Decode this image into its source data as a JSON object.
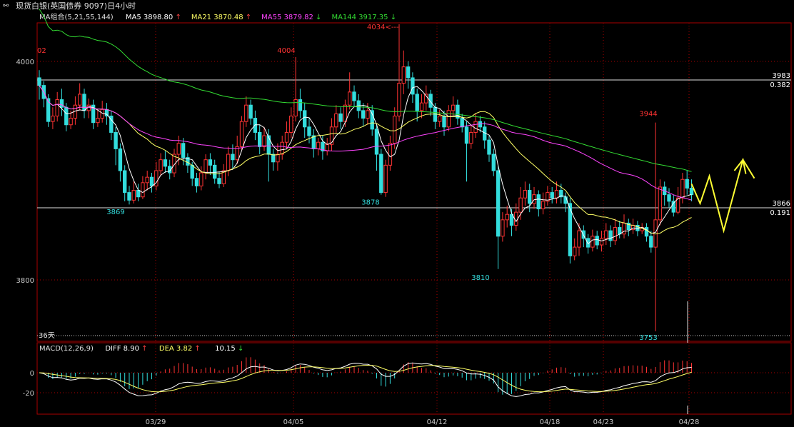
{
  "window": {
    "title": "现货白银(英国债券 9097)日4小时",
    "icon": "link-icon"
  },
  "ma_legend": {
    "group_label": "MA组合(5,21,55,144)",
    "items": [
      {
        "label": "MA5 3898.80",
        "arrow": "↑",
        "color": "#ffffff"
      },
      {
        "label": "MA21 3870.48",
        "arrow": "↑",
        "color": "#ffff66"
      },
      {
        "label": "MA55 3879.82",
        "arrow": "↓",
        "color": "#ff44ff"
      },
      {
        "label": "MA144 3917.35",
        "arrow": "↓",
        "color": "#33dd33"
      }
    ]
  },
  "macd_legend": {
    "label": "MACD(12,26,9)",
    "diff": "DIFF 8.90",
    "diff_arrow": "↑",
    "dea": "DEA 3.82",
    "dea_arrow": "↑",
    "macd": "10.15",
    "macd_arrow": "↓"
  },
  "colors": {
    "up": "#ff3333",
    "down": "#33dddd",
    "ma5": "#ffffff",
    "ma21": "#ffff66",
    "ma55": "#ff44ff",
    "ma144": "#33dd33",
    "grid": "#aa0000",
    "forecast": "#ffff33"
  },
  "chart_data": [
    {
      "type": "candlestick",
      "title": "现货白银(英国债券 9097)日4小时",
      "ylim": [
        3753,
        4034
      ],
      "yticks": [
        "4000",
        "3800"
      ],
      "xticks": [
        "03/29",
        "04/05",
        "04/12",
        "04/18",
        "04/23",
        "04/28"
      ],
      "price_annotations": [
        "02",
        "4004",
        "4034<---",
        "3869",
        "3878",
        "3810",
        "3944",
        "3753"
      ],
      "horizontal_levels": [
        {
          "price": 3983,
          "label": "3983",
          "ratio": "0.382"
        },
        {
          "price": 3866,
          "label": "3866",
          "ratio": "0.191"
        }
      ],
      "bottom_label": "36天",
      "series": [
        {
          "name": "MA5",
          "last": 3898.8
        },
        {
          "name": "MA21",
          "last": 3870.48
        },
        {
          "name": "MA55",
          "last": 3879.82
        },
        {
          "name": "MA144",
          "last": 3917.35
        }
      ],
      "candles": [
        [
          3985,
          3978,
          3992,
          3965
        ],
        [
          3978,
          3966,
          3982,
          3958
        ],
        [
          3966,
          3945,
          3970,
          3940
        ],
        [
          3945,
          3950,
          3958,
          3938
        ],
        [
          3950,
          3965,
          3972,
          3945
        ],
        [
          3965,
          3958,
          3975,
          3950
        ],
        [
          3958,
          3942,
          3962,
          3936
        ],
        [
          3942,
          3948,
          3955,
          3938
        ],
        [
          3948,
          3960,
          3968,
          3942
        ],
        [
          3960,
          3970,
          3980,
          3955
        ],
        [
          3970,
          3955,
          3975,
          3948
        ],
        [
          3955,
          3960,
          3966,
          3948
        ],
        [
          3960,
          3944,
          3965,
          3938
        ],
        [
          3944,
          3948,
          3956,
          3940
        ],
        [
          3948,
          3956,
          3964,
          3944
        ],
        [
          3956,
          3950,
          3962,
          3942
        ],
        [
          3950,
          3935,
          3955,
          3928
        ],
        [
          3935,
          3920,
          3940,
          3905
        ],
        [
          3920,
          3900,
          3925,
          3890
        ],
        [
          3900,
          3880,
          3905,
          3872
        ],
        [
          3880,
          3873,
          3886,
          3869
        ],
        [
          3873,
          3882,
          3890,
          3870
        ],
        [
          3882,
          3876,
          3888,
          3872
        ],
        [
          3876,
          3889,
          3895,
          3874
        ],
        [
          3889,
          3894,
          3900,
          3882
        ],
        [
          3894,
          3886,
          3898,
          3880
        ],
        [
          3886,
          3900,
          3908,
          3882
        ],
        [
          3900,
          3910,
          3916,
          3895
        ],
        [
          3910,
          3904,
          3918,
          3898
        ],
        [
          3904,
          3898,
          3910,
          3892
        ],
        [
          3898,
          3915,
          3920,
          3894
        ],
        [
          3915,
          3925,
          3932,
          3905
        ],
        [
          3925,
          3912,
          3930,
          3905
        ],
        [
          3912,
          3905,
          3916,
          3898
        ],
        [
          3905,
          3893,
          3908,
          3886
        ],
        [
          3893,
          3886,
          3898,
          3880
        ],
        [
          3886,
          3898,
          3904,
          3882
        ],
        [
          3898,
          3910,
          3915,
          3892
        ],
        [
          3910,
          3905,
          3916,
          3896
        ],
        [
          3905,
          3893,
          3910,
          3888
        ],
        [
          3893,
          3888,
          3899,
          3884
        ],
        [
          3888,
          3900,
          3906,
          3885
        ],
        [
          3900,
          3915,
          3922,
          3895
        ],
        [
          3915,
          3910,
          3924,
          3902
        ],
        [
          3910,
          3922,
          3932,
          3906
        ],
        [
          3922,
          3945,
          3950,
          3918
        ],
        [
          3945,
          3960,
          3968,
          3940
        ],
        [
          3960,
          3948,
          3965,
          3942
        ],
        [
          3948,
          3935,
          3955,
          3928
        ],
        [
          3935,
          3922,
          3942,
          3915
        ],
        [
          3922,
          3932,
          3940,
          3918
        ],
        [
          3932,
          3915,
          3938,
          3890
        ],
        [
          3915,
          3908,
          3920,
          3900
        ],
        [
          3908,
          3915,
          3925,
          3900
        ],
        [
          3915,
          3926,
          3932,
          3910
        ],
        [
          3926,
          3935,
          3945,
          3920
        ],
        [
          3935,
          3950,
          3958,
          3930
        ],
        [
          3950,
          3965,
          4004,
          3945
        ],
        [
          3965,
          3955,
          3975,
          3948
        ],
        [
          3955,
          3940,
          3962,
          3930
        ],
        [
          3940,
          3932,
          3948,
          3925
        ],
        [
          3932,
          3920,
          3938,
          3912
        ],
        [
          3920,
          3926,
          3930,
          3914
        ],
        [
          3926,
          3918,
          3932,
          3910
        ],
        [
          3918,
          3924,
          3930,
          3914
        ],
        [
          3924,
          3940,
          3948,
          3918
        ],
        [
          3940,
          3952,
          3960,
          3934
        ],
        [
          3952,
          3945,
          3958,
          3938
        ],
        [
          3945,
          3960,
          3965,
          3940
        ],
        [
          3960,
          3972,
          3990,
          3956
        ],
        [
          3972,
          3964,
          3978,
          3958
        ],
        [
          3964,
          3955,
          3970,
          3948
        ],
        [
          3955,
          3948,
          3962,
          3940
        ],
        [
          3948,
          3955,
          3962,
          3942
        ],
        [
          3955,
          3938,
          3960,
          3932
        ],
        [
          3938,
          3915,
          3942,
          3900
        ],
        [
          3915,
          3880,
          3920,
          3878
        ],
        [
          3880,
          3905,
          3910,
          3876
        ],
        [
          3905,
          3925,
          3932,
          3900
        ],
        [
          3925,
          3950,
          3958,
          3920
        ],
        [
          3950,
          3980,
          4034,
          3945
        ],
        [
          3980,
          3995,
          4010,
          3970
        ],
        [
          3995,
          3985,
          4000,
          3975
        ],
        [
          3985,
          3970,
          3990,
          3962
        ],
        [
          3970,
          3955,
          3975,
          3945
        ],
        [
          3955,
          3962,
          3970,
          3948
        ],
        [
          3962,
          3970,
          3978,
          3955
        ],
        [
          3970,
          3958,
          3974,
          3950
        ],
        [
          3958,
          3945,
          3962,
          3938
        ],
        [
          3945,
          3950,
          3956,
          3940
        ],
        [
          3950,
          3940,
          3955,
          3932
        ],
        [
          3940,
          3955,
          3960,
          3936
        ],
        [
          3955,
          3960,
          3968,
          3950
        ],
        [
          3960,
          3948,
          3965,
          3942
        ],
        [
          3948,
          3940,
          3952,
          3935
        ],
        [
          3940,
          3925,
          3945,
          3890
        ],
        [
          3925,
          3935,
          3942,
          3920
        ],
        [
          3935,
          3945,
          3952,
          3930
        ],
        [
          3945,
          3940,
          3950,
          3935
        ],
        [
          3940,
          3928,
          3945,
          3920
        ],
        [
          3928,
          3915,
          3932,
          3908
        ],
        [
          3915,
          3900,
          3920,
          3895
        ],
        [
          3900,
          3840,
          3905,
          3810
        ],
        [
          3840,
          3855,
          3862,
          3835
        ],
        [
          3855,
          3860,
          3868,
          3848
        ],
        [
          3860,
          3850,
          3865,
          3840
        ],
        [
          3850,
          3862,
          3870,
          3845
        ],
        [
          3862,
          3875,
          3885,
          3855
        ],
        [
          3875,
          3882,
          3890,
          3868
        ],
        [
          3882,
          3870,
          3888,
          3862
        ],
        [
          3870,
          3878,
          3885,
          3865
        ],
        [
          3878,
          3865,
          3882,
          3858
        ],
        [
          3865,
          3872,
          3880,
          3860
        ],
        [
          3872,
          3880,
          3886,
          3868
        ],
        [
          3880,
          3875,
          3885,
          3870
        ],
        [
          3875,
          3882,
          3890,
          3870
        ],
        [
          3882,
          3876,
          3888,
          3870
        ],
        [
          3876,
          3870,
          3880,
          3862
        ],
        [
          3870,
          3822,
          3875,
          3815
        ],
        [
          3822,
          3830,
          3838,
          3818
        ],
        [
          3830,
          3845,
          3852,
          3822
        ],
        [
          3845,
          3838,
          3850,
          3830
        ],
        [
          3838,
          3830,
          3842,
          3824
        ],
        [
          3830,
          3840,
          3846,
          3826
        ],
        [
          3840,
          3832,
          3845,
          3828
        ],
        [
          3832,
          3838,
          3845,
          3826
        ],
        [
          3838,
          3845,
          3852,
          3832
        ],
        [
          3845,
          3836,
          3850,
          3830
        ],
        [
          3836,
          3848,
          3856,
          3832
        ],
        [
          3848,
          3842,
          3854,
          3838
        ],
        [
          3842,
          3852,
          3860,
          3838
        ],
        [
          3852,
          3846,
          3856,
          3840
        ],
        [
          3846,
          3850,
          3856,
          3842
        ],
        [
          3850,
          3845,
          3854,
          3840
        ],
        [
          3845,
          3848,
          3852,
          3842
        ],
        [
          3848,
          3840,
          3852,
          3835
        ],
        [
          3840,
          3830,
          3845,
          3825
        ],
        [
          3830,
          3855,
          3944,
          3753
        ],
        [
          3855,
          3885,
          3892,
          3850
        ],
        [
          3885,
          3878,
          3890,
          3868
        ],
        [
          3878,
          3872,
          3884,
          3866
        ],
        [
          3872,
          3862,
          3878,
          3858
        ],
        [
          3862,
          3875,
          3885,
          3860
        ],
        [
          3875,
          3892,
          3898,
          3870
        ],
        [
          3892,
          3884,
          3900,
          3878
        ],
        [
          3884,
          3878,
          3892,
          3872
        ]
      ]
    },
    {
      "type": "histogram",
      "title": "MACD(12,26,9)",
      "yticks": [
        "0",
        "-20"
      ],
      "series": [
        {
          "name": "DIFF",
          "last": 8.9
        },
        {
          "name": "DEA",
          "last": 3.82
        },
        {
          "name": "MACD",
          "last": 10.15
        }
      ]
    }
  ]
}
